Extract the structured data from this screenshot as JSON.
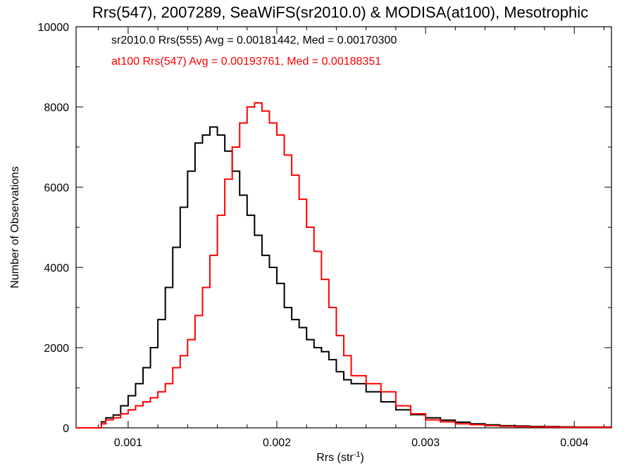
{
  "chart_data": {
    "type": "line",
    "style": "step-histogram",
    "title": "Rrs(547), 2007289, SeaWiFS(sr2010.0) & MODISA(at100), Mesotrophic",
    "xlabel_main": "Rrs (str",
    "xlabel_sup": "-1",
    "xlabel_close": ")",
    "ylabel": "Number of Observations",
    "xlim": [
      0.00065,
      0.00425
    ],
    "ylim": [
      0,
      10000
    ],
    "xticks": [
      {
        "value": 0.001,
        "label": "0.001"
      },
      {
        "value": 0.002,
        "label": "0.002"
      },
      {
        "value": 0.003,
        "label": "0.003"
      },
      {
        "value": 0.004,
        "label": "0.004"
      }
    ],
    "yticks": [
      {
        "value": 0,
        "label": "0"
      },
      {
        "value": 2000,
        "label": "2000"
      },
      {
        "value": 4000,
        "label": "4000"
      },
      {
        "value": 6000,
        "label": "6000"
      },
      {
        "value": 8000,
        "label": "8000"
      },
      {
        "value": 10000,
        "label": "10000"
      }
    ],
    "grid": false,
    "annotations": [
      {
        "text": "sr2010.0 Rrs(555) Avg = 0.00181442, Med = 0.00170300",
        "color": "#000000"
      },
      {
        "text": "at100 Rrs(547) Avg = 0.00193761, Med = 0.00188351",
        "color": "#ff0000"
      }
    ],
    "series": [
      {
        "color": "#000000",
        "x": [
          0.00065,
          0.0008,
          0.00082,
          0.00085,
          0.0009,
          0.00095,
          0.001,
          0.00105,
          0.0011,
          0.00115,
          0.0012,
          0.00125,
          0.0013,
          0.00135,
          0.0014,
          0.00145,
          0.0015,
          0.00155,
          0.0016,
          0.00165,
          0.0017,
          0.00175,
          0.0018,
          0.00185,
          0.0019,
          0.00195,
          0.002,
          0.00205,
          0.0021,
          0.00215,
          0.0022,
          0.00225,
          0.0023,
          0.00235,
          0.0024,
          0.00245,
          0.0025,
          0.0026,
          0.0027,
          0.0028,
          0.0029,
          0.003,
          0.0031,
          0.0032,
          0.0033,
          0.0034,
          0.0035,
          0.0036,
          0.0037,
          0.0038,
          0.0039,
          0.004,
          0.00425
        ],
        "y": [
          0,
          0,
          150,
          250,
          320,
          550,
          800,
          1100,
          1500,
          2000,
          2700,
          3500,
          4500,
          5500,
          6400,
          7100,
          7300,
          7500,
          7300,
          6900,
          6400,
          5800,
          5300,
          4800,
          4300,
          4000,
          3600,
          3000,
          2700,
          2500,
          2200,
          2000,
          1900,
          1700,
          1400,
          1200,
          1100,
          900,
          650,
          450,
          330,
          250,
          190,
          140,
          100,
          75,
          55,
          45,
          35,
          30,
          25,
          20,
          15
        ]
      },
      {
        "color": "#ff0000",
        "x": [
          0.00065,
          0.0008,
          0.00082,
          0.00085,
          0.0009,
          0.00095,
          0.001,
          0.00105,
          0.0011,
          0.00115,
          0.0012,
          0.00125,
          0.0013,
          0.00135,
          0.0014,
          0.00145,
          0.0015,
          0.00155,
          0.0016,
          0.00165,
          0.0017,
          0.00175,
          0.0018,
          0.00185,
          0.0019,
          0.00195,
          0.002,
          0.00205,
          0.0021,
          0.00215,
          0.0022,
          0.00225,
          0.0023,
          0.00235,
          0.0024,
          0.00245,
          0.0025,
          0.0026,
          0.0027,
          0.0028,
          0.0029,
          0.003,
          0.0031,
          0.0032,
          0.0033,
          0.0034,
          0.0035,
          0.0036,
          0.0037,
          0.0038,
          0.0039,
          0.004,
          0.00425
        ],
        "y": [
          0,
          0,
          100,
          200,
          250,
          350,
          450,
          550,
          650,
          750,
          900,
          1100,
          1500,
          1800,
          2200,
          2800,
          3500,
          4300,
          5300,
          6200,
          7000,
          7600,
          8000,
          8100,
          7900,
          7600,
          7300,
          6800,
          6300,
          5700,
          5000,
          4400,
          3700,
          3000,
          2300,
          1800,
          1300,
          1100,
          900,
          550,
          350,
          200,
          150,
          100,
          80,
          55,
          40,
          30,
          25,
          20,
          15,
          15,
          10
        ]
      }
    ]
  }
}
